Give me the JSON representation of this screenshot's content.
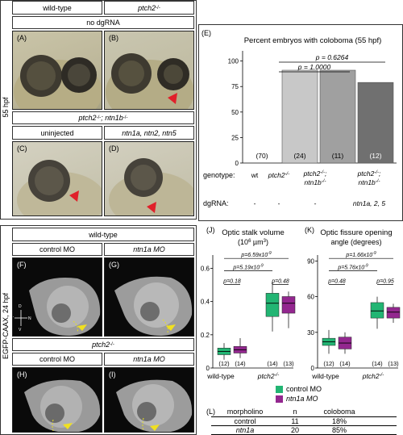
{
  "top_panel": {
    "side_label": "55 hpf",
    "col_wt": "wild-type",
    "col_ptch": "ptch2",
    "ptch_sup": "-/-",
    "no_dgrna": "no dgRNA",
    "row2_title_a": "ptch2",
    "row2_sup_a": "-/-",
    "row2_title_b": "; ntn1b",
    "row2_sup_b": "-/-",
    "col_uninjected": "uninjected",
    "col_ntn": "ntn1a, ntn2, ntn5",
    "labels": [
      "(A)",
      "(B)",
      "(C)",
      "(D)"
    ]
  },
  "panel_E": {
    "label": "(E)",
    "title": "Percent embryos with coloboma (55 hpf)",
    "p1": "p = 1.0000",
    "p2": "p = 0.6264",
    "genotype_label": "genotype:",
    "dgrna_label": "dgRNA:",
    "genotypes": [
      "wt",
      "ptch2-/-",
      "ptch2-/-; ntn1b-/-",
      "ptch2-/-; ntn1b-/-"
    ],
    "dgrna": [
      "-",
      "-",
      "-",
      "ntn1a, 2, 5"
    ]
  },
  "chart_data": [
    {
      "type": "bar",
      "title": "Percent embryos with coloboma (55 hpf)",
      "categories": [
        "wt",
        "ptch2-/-",
        "ptch2-/-; ntn1b-/-",
        "ptch2-/-; ntn1b-/-; ntn1a, 2, 5"
      ],
      "values": [
        0,
        91,
        91,
        79
      ],
      "n_labels": [
        "(70)",
        "(24)",
        "(11)",
        "(12)"
      ],
      "yticks": [
        0,
        25,
        50,
        75,
        100
      ],
      "ylim": [
        0,
        110
      ],
      "colors": [
        "#ffffff",
        "#c8c8c8",
        "#a0a0a0",
        "#707070"
      ]
    },
    {
      "type": "box",
      "title": "Optic stalk volume (10^6 µm^3)",
      "categories": [
        "wild-type",
        "ptch2-/-"
      ],
      "series": [
        {
          "name": "control MO",
          "medians": [
            0.1,
            0.39
          ],
          "q1": [
            0.08,
            0.31
          ],
          "q3": [
            0.12,
            0.45
          ],
          "min": [
            0.05,
            0.22
          ],
          "max": [
            0.15,
            0.52
          ]
        },
        {
          "name": "ntn1a MO",
          "medians": [
            0.11,
            0.39
          ],
          "q1": [
            0.09,
            0.33
          ],
          "q3": [
            0.13,
            0.43
          ],
          "min": [
            0.06,
            0.24
          ],
          "max": [
            0.18,
            0.46
          ]
        }
      ],
      "yticks": [
        0,
        0.2,
        0.4,
        0.6
      ],
      "ylim": [
        0,
        0.68
      ],
      "n_labels": [
        "(12)",
        "(14)",
        "(14)",
        "(13)"
      ],
      "pvalues": [
        "p=6.59x10",
        "p=5.19x10",
        "p=0.18",
        "p=0.48"
      ],
      "p_exp": [
        "-9",
        "-9"
      ]
    },
    {
      "type": "box",
      "title": "Optic fissure opening angle (degrees)",
      "categories": [
        "wild-type",
        "ptch2-/-"
      ],
      "series": [
        {
          "name": "control MO",
          "medians": [
            22,
            48
          ],
          "q1": [
            19,
            42
          ],
          "q3": [
            25,
            55
          ],
          "min": [
            12,
            33
          ],
          "max": [
            32,
            60
          ]
        },
        {
          "name": "ntn1a MO",
          "medians": [
            21,
            47
          ],
          "q1": [
            16,
            42
          ],
          "q3": [
            26,
            51
          ],
          "min": [
            12,
            38
          ],
          "max": [
            30,
            54
          ]
        }
      ],
      "yticks": [
        0,
        30,
        60,
        90
      ],
      "ylim": [
        0,
        95
      ],
      "n_labels": [
        "(12)",
        "(14)",
        "(14)",
        "(13)"
      ],
      "pvalues": [
        "p=1.66x10",
        "p=5.76x10",
        "p=0.48",
        "p=0.95"
      ],
      "p_exp": [
        "-9",
        "-9"
      ]
    }
  ],
  "bottom_panel": {
    "side_label": "EGFP-CAAX, 24 hpf",
    "wt_title": "wild-type",
    "ptch_title": "ptch2",
    "ptch_sup": "-/-",
    "control_mo": "control MO",
    "ntn1a_mo": "ntn1a MO",
    "labels": [
      "(F)",
      "(G)",
      "(H)",
      "(I)"
    ],
    "axis_d": "D",
    "axis_v": "V",
    "axis_n": "N",
    "axis_t": "T"
  },
  "panel_J": {
    "label": "(J)",
    "title_line1": "Optic stalk volume",
    "title_line2": "(10",
    "title_sup": "6",
    "title_unit": " µm",
    "title_sup2": "3",
    "title_end": ")"
  },
  "panel_K": {
    "label": "(K)",
    "title_line1": "Optic fissure opening",
    "title_line2": "angle (degrees)"
  },
  "xlabels": {
    "wt": "wild-type",
    "ptch": "ptch2",
    "ptch_sup": "-/-"
  },
  "legend": {
    "control": "control MO",
    "ntn1a": "ntn1a MO",
    "control_color": "#22b573",
    "ntn1a_color": "#93278f"
  },
  "panel_L": {
    "label": "(L)",
    "headers": [
      "morpholino",
      "n",
      "coloboma"
    ],
    "rows": [
      [
        "control",
        "11",
        "18%"
      ],
      [
        "ntn1a",
        "20",
        "85%"
      ]
    ]
  }
}
